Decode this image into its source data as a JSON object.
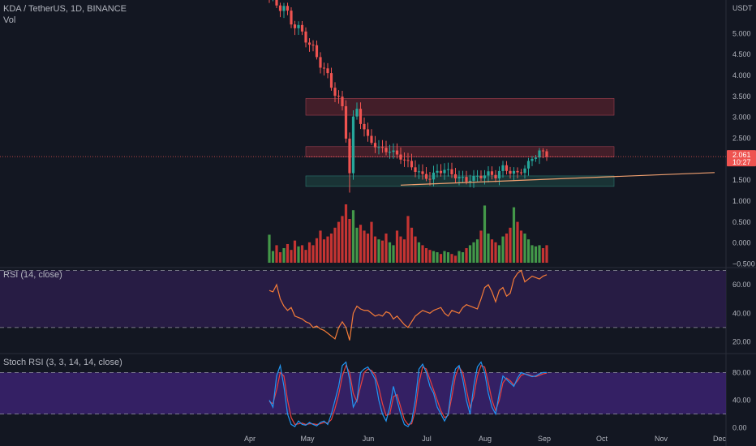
{
  "header": {
    "symbol_line": "KDA / TetherUS, 1D, BINANCE",
    "vol_label": "Vol",
    "rsi_label": "RSI (14, close)",
    "stoch_label": "Stoch RSI (3, 3, 14, 14, close)",
    "currency": "USDT"
  },
  "colors": {
    "background": "#131722",
    "up": "#26a69a",
    "down": "#ef5350",
    "vol_up": "#4caf50",
    "vol_down": "#e53935",
    "rsi_line": "#f57c38",
    "rsi_band": "#2b1d4a",
    "stoch_band": "#3b2270",
    "stoch_k": "#2196f3",
    "stoch_d": "#e8403f",
    "resistance_zone": "#6b2430",
    "support_zone": "#1f4a45",
    "trendline": "#f0a070",
    "price_line": "#ef5350"
  },
  "chart_data": [
    {
      "type": "candlestick",
      "name": "price",
      "price_axis_labels": [
        "5.000",
        "4.500",
        "4.000",
        "3.500",
        "3.000",
        "2.500",
        "2.000",
        "1.500",
        "1.000",
        "0.500",
        "0.000",
        "−0.500"
      ],
      "price_axis_values": [
        5.0,
        4.5,
        4.0,
        3.5,
        3.0,
        2.5,
        2.0,
        1.5,
        1.0,
        0.5,
        0.0,
        -0.5
      ],
      "ylim": [
        -0.55,
        5.8
      ],
      "time_labels": [
        "Apr",
        "May",
        "Jun",
        "Jul",
        "Aug",
        "Sep",
        "Oct",
        "Nov",
        "Dec"
      ],
      "current_price_label": "2.061",
      "countdown_label": "10:27",
      "last_price": 2.061,
      "days_visible": 77,
      "key_points": [
        {
          "day": 0,
          "price": 5.9
        },
        {
          "day": 2,
          "price": 5.7
        },
        {
          "day": 4,
          "price": 5.6
        },
        {
          "day": 6,
          "price": 5.3
        },
        {
          "day": 8,
          "price": 5.1
        },
        {
          "day": 10,
          "price": 4.9
        },
        {
          "day": 12,
          "price": 4.6
        },
        {
          "day": 14,
          "price": 4.3
        },
        {
          "day": 16,
          "price": 3.95
        },
        {
          "day": 18,
          "price": 3.6
        },
        {
          "day": 20,
          "price": 3.2
        },
        {
          "day": 21,
          "price": 2.6
        },
        {
          "day": 22,
          "price": 1.7
        },
        {
          "day": 23,
          "price": 2.9
        },
        {
          "day": 24,
          "price": 3.2
        },
        {
          "day": 25,
          "price": 2.9
        },
        {
          "day": 27,
          "price": 2.5
        },
        {
          "day": 30,
          "price": 2.25
        },
        {
          "day": 33,
          "price": 2.2
        },
        {
          "day": 36,
          "price": 2.05
        },
        {
          "day": 38,
          "price": 1.9
        },
        {
          "day": 40,
          "price": 1.75
        },
        {
          "day": 42,
          "price": 1.6
        },
        {
          "day": 44,
          "price": 1.55
        },
        {
          "day": 46,
          "price": 1.7
        },
        {
          "day": 48,
          "price": 1.75
        },
        {
          "day": 50,
          "price": 1.65
        },
        {
          "day": 52,
          "price": 1.55
        },
        {
          "day": 54,
          "price": 1.5
        },
        {
          "day": 56,
          "price": 1.55
        },
        {
          "day": 58,
          "price": 1.6
        },
        {
          "day": 60,
          "price": 1.65
        },
        {
          "day": 62,
          "price": 1.6
        },
        {
          "day": 64,
          "price": 1.8
        },
        {
          "day": 66,
          "price": 1.7
        },
        {
          "day": 68,
          "price": 1.65
        },
        {
          "day": 70,
          "price": 1.8
        },
        {
          "day": 72,
          "price": 2.0
        },
        {
          "day": 74,
          "price": 2.2
        },
        {
          "day": 76,
          "price": 2.061
        }
      ],
      "zones": [
        {
          "type": "resistance",
          "from": 3.05,
          "to": 3.45
        },
        {
          "type": "mid",
          "from": 2.05,
          "to": 2.3
        },
        {
          "type": "support",
          "from": 1.35,
          "to": 1.6
        }
      ],
      "trendline": {
        "start_day": 36,
        "start_price": 1.38,
        "end_day": 122,
        "end_price": 1.68
      }
    },
    {
      "type": "bar",
      "name": "volume",
      "relative_values": [
        0.48,
        0.2,
        0.3,
        0.18,
        0.25,
        0.32,
        0.22,
        0.38,
        0.28,
        0.3,
        0.22,
        0.35,
        0.3,
        0.42,
        0.55,
        0.4,
        0.45,
        0.5,
        0.6,
        0.7,
        0.8,
        1.0,
        0.75,
        0.9,
        0.6,
        0.65,
        0.55,
        0.5,
        0.7,
        0.45,
        0.4,
        0.38,
        0.5,
        0.35,
        0.3,
        0.55,
        0.45,
        0.4,
        0.8,
        0.6,
        0.45,
        0.35,
        0.3,
        0.25,
        0.22,
        0.2,
        0.18,
        0.15,
        0.2,
        0.18,
        0.15,
        0.12,
        0.2,
        0.18,
        0.25,
        0.3,
        0.35,
        0.4,
        0.55,
        0.98,
        0.5,
        0.4,
        0.35,
        0.3,
        0.45,
        0.5,
        0.6,
        0.95,
        0.7,
        0.55,
        0.5,
        0.4,
        0.3,
        0.28,
        0.3,
        0.25,
        0.3
      ]
    },
    {
      "type": "line",
      "name": "rsi",
      "axis_labels": [
        "60.00",
        "40.00",
        "20.00"
      ],
      "axis_values": [
        60,
        40,
        20
      ],
      "ylim": [
        14,
        72
      ],
      "bands": [
        30,
        70
      ],
      "values": [
        56,
        55,
        60,
        50,
        45,
        42,
        44,
        38,
        37,
        36,
        34,
        33,
        30,
        31,
        29,
        28,
        26,
        24,
        22,
        30,
        34,
        30,
        21,
        40,
        45,
        43,
        42,
        42,
        40,
        38,
        39,
        38,
        41,
        40,
        36,
        38,
        35,
        32,
        30,
        34,
        38,
        40,
        42,
        41,
        40,
        42,
        43,
        44,
        40,
        38,
        42,
        41,
        40,
        44,
        46,
        45,
        44,
        43,
        50,
        58,
        60,
        55,
        48,
        56,
        58,
        52,
        54,
        64,
        68,
        70,
        62,
        64,
        66,
        65,
        64,
        66,
        67
      ]
    },
    {
      "type": "line",
      "name": "stoch_rsi",
      "axis_labels": [
        "80.00",
        "40.00",
        "0.00"
      ],
      "axis_values": [
        80,
        40,
        0
      ],
      "ylim": [
        -5,
        105
      ],
      "bands": [
        20,
        80
      ],
      "k": [
        40,
        30,
        75,
        90,
        60,
        20,
        5,
        2,
        10,
        5,
        4,
        8,
        5,
        3,
        8,
        10,
        5,
        20,
        40,
        60,
        90,
        95,
        70,
        30,
        40,
        80,
        85,
        88,
        80,
        70,
        40,
        20,
        10,
        30,
        60,
        40,
        20,
        5,
        2,
        10,
        40,
        85,
        92,
        80,
        60,
        50,
        30,
        20,
        10,
        20,
        60,
        85,
        90,
        70,
        40,
        20,
        60,
        88,
        95,
        80,
        50,
        30,
        20,
        50,
        75,
        70,
        65,
        60,
        72,
        80,
        78,
        76,
        74,
        75,
        78,
        80,
        80
      ],
      "d": [
        38,
        35,
        55,
        80,
        75,
        40,
        15,
        5,
        6,
        7,
        5,
        6,
        6,
        5,
        6,
        8,
        7,
        12,
        28,
        48,
        75,
        90,
        80,
        50,
        38,
        60,
        80,
        85,
        83,
        76,
        58,
        35,
        18,
        20,
        45,
        48,
        30,
        12,
        5,
        6,
        25,
        65,
        88,
        85,
        70,
        55,
        40,
        25,
        15,
        18,
        45,
        75,
        88,
        80,
        55,
        30,
        45,
        75,
        90,
        88,
        65,
        40,
        25,
        40,
        65,
        72,
        68,
        62,
        68,
        76,
        78,
        77,
        75,
        74,
        76,
        78,
        79
      ]
    }
  ]
}
